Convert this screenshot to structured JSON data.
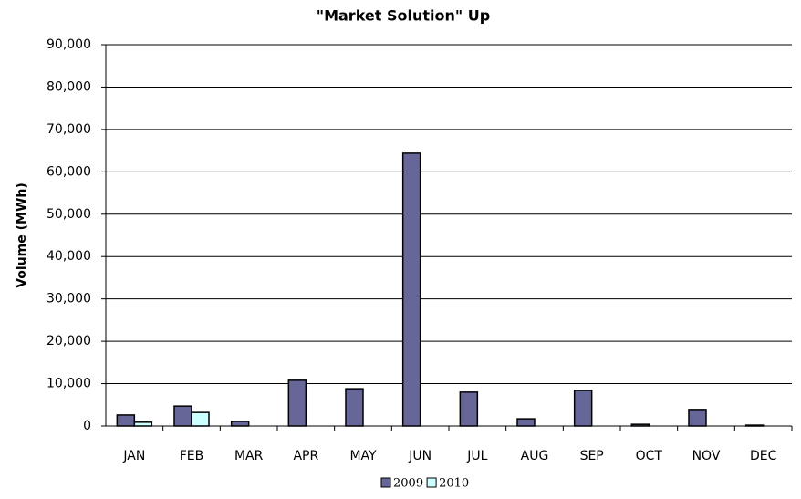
{
  "chart_data": {
    "type": "bar",
    "title": "\"Market Solution\" Up",
    "y_label": "Volume (MWh)",
    "categories": [
      "JAN",
      "FEB",
      "MAR",
      "APR",
      "MAY",
      "JUN",
      "JUL",
      "AUG",
      "SEP",
      "OCT",
      "NOV",
      "DEC"
    ],
    "series": [
      {
        "name": "2009",
        "color": "#666699",
        "values": [
          2600,
          4700,
          1100,
          10800,
          8800,
          64400,
          8000,
          1700,
          8400,
          400,
          3900,
          200
        ]
      },
      {
        "name": "2010",
        "color": "#ccffff",
        "values": [
          900,
          3200,
          null,
          null,
          null,
          null,
          null,
          null,
          null,
          null,
          null,
          null
        ]
      }
    ],
    "ylim": [
      0,
      90000
    ],
    "yticks": [
      0,
      {
        "value": 10000,
        "label": "10,000"
      },
      {
        "value": 20000,
        "label": "20,000"
      },
      {
        "value": 30000,
        "label": "30,000"
      },
      {
        "value": 40000,
        "label": "40,000"
      },
      {
        "value": 50000,
        "label": "50,000"
      },
      {
        "value": 60000,
        "label": "60,000"
      },
      {
        "value": 70000,
        "label": "70,000"
      },
      {
        "value": 80000,
        "label": "80,000"
      },
      {
        "value": 90000,
        "label": "90,000"
      }
    ],
    "grid": true,
    "legend": "bottom"
  }
}
